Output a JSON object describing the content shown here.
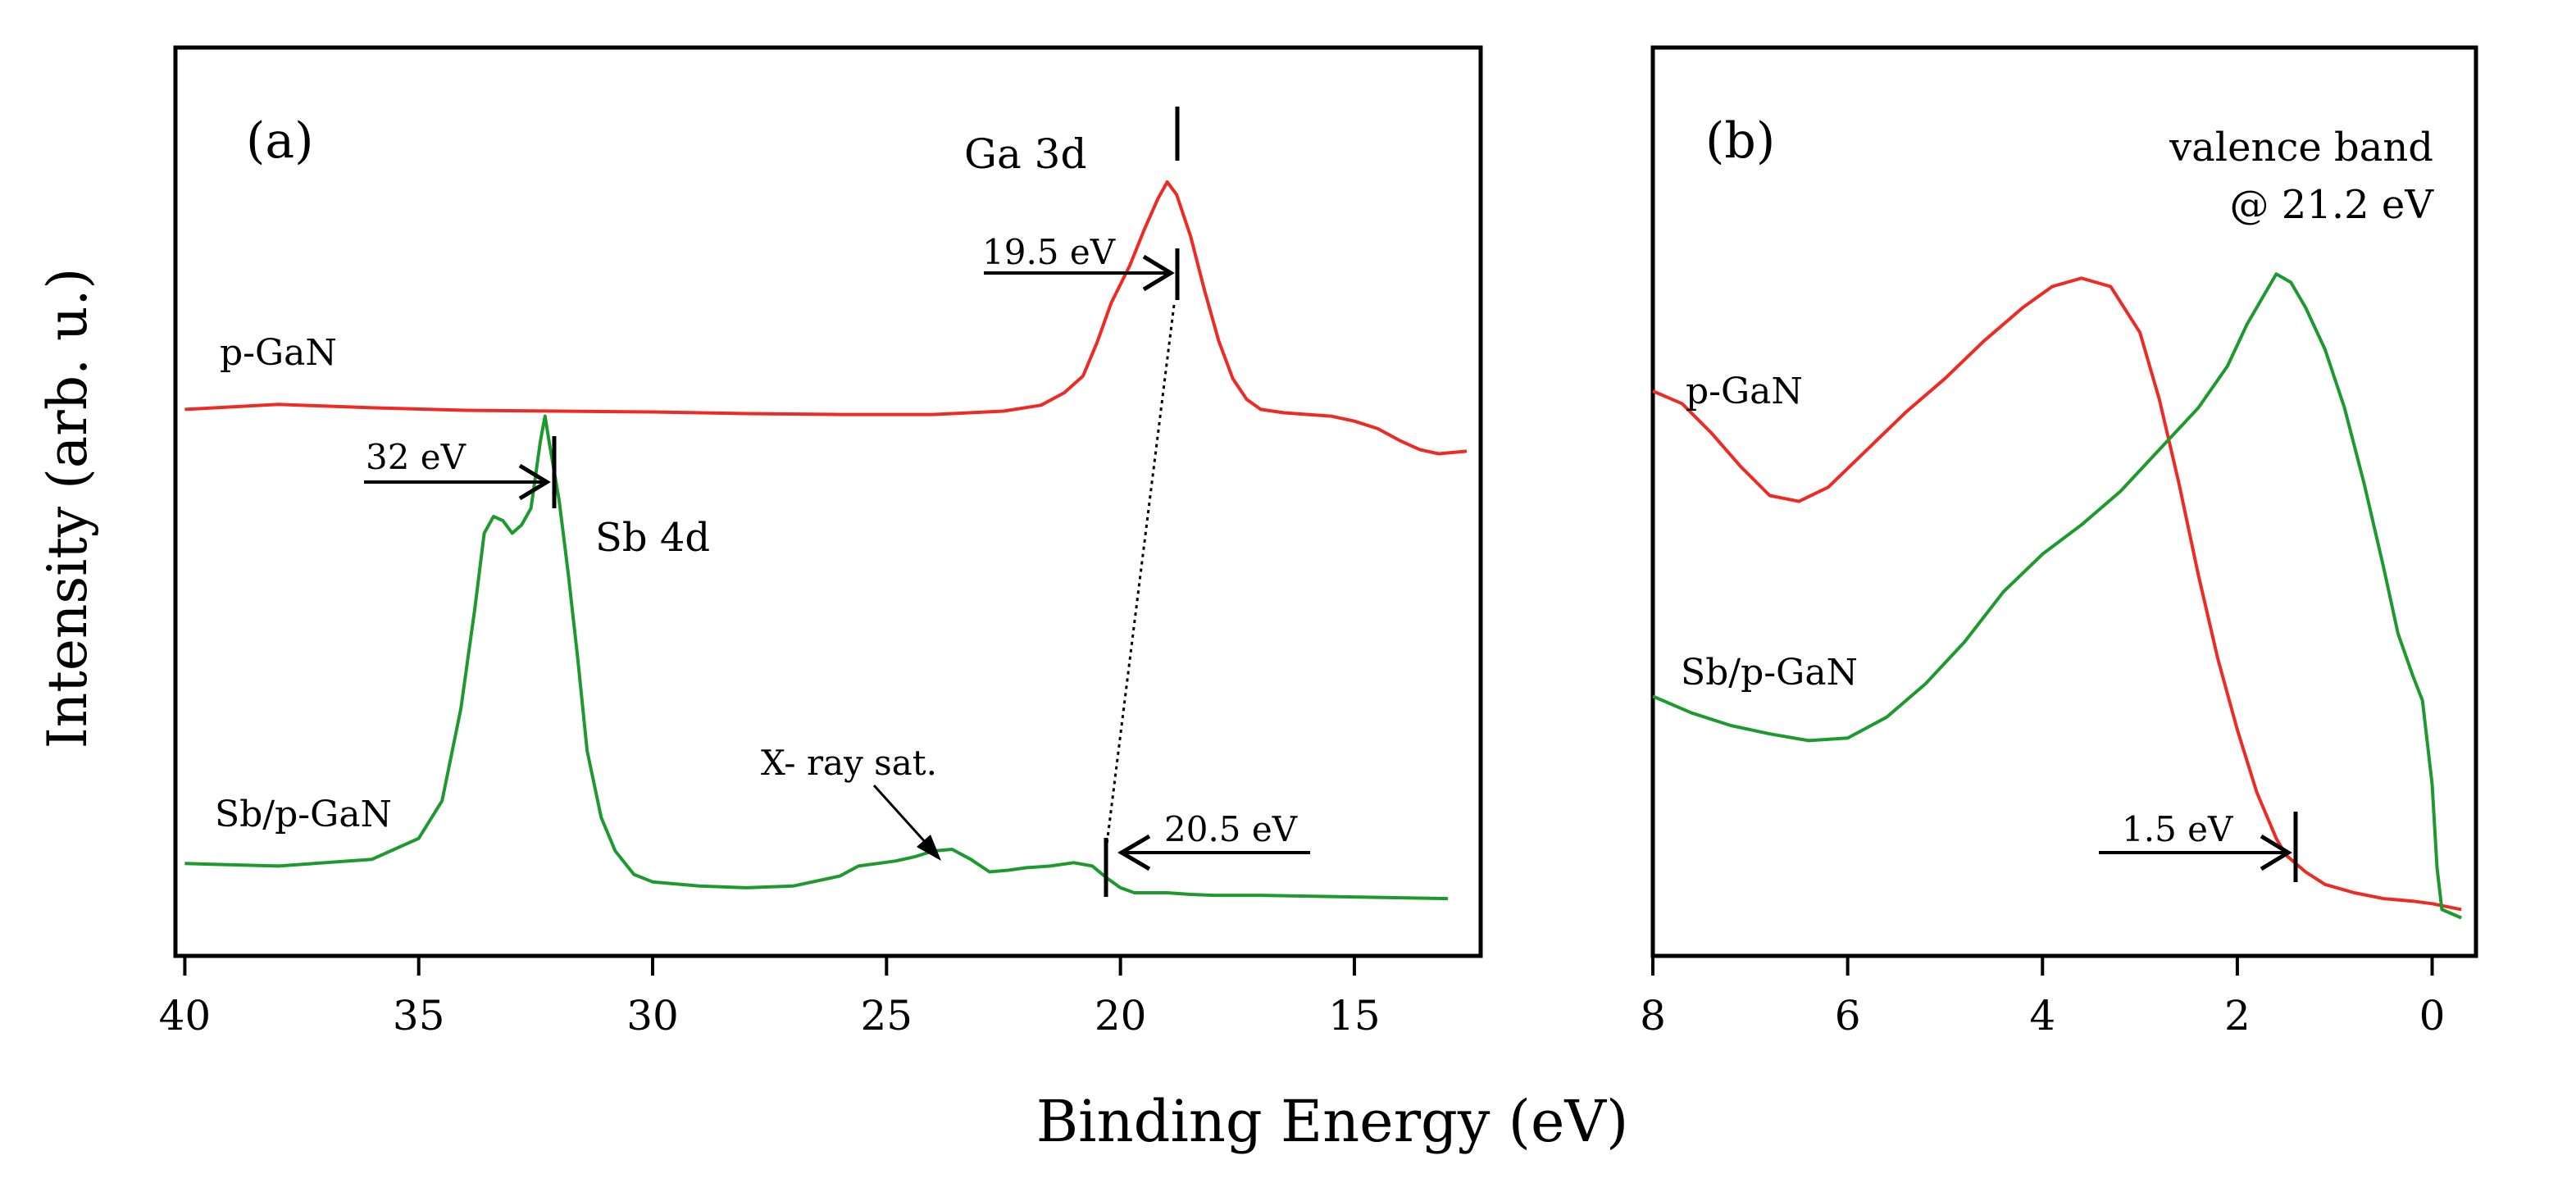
{
  "figure": {
    "ylabel": "Intensity (arb. u.)",
    "xlabel": "Binding Energy (eV)"
  },
  "chart_data": [
    {
      "type": "line",
      "panel_label": "(a)",
      "xlim": [
        40.2,
        12.3
      ],
      "ylim": [
        0,
        1
      ],
      "xticks": [
        40,
        35,
        30,
        25,
        20,
        15
      ],
      "xtick_labels": [
        "40",
        "35",
        "30",
        "25",
        "20",
        "15"
      ],
      "yticks": [],
      "grid": false,
      "series": [
        {
          "name": "p-GaN",
          "color": "#ee2a24",
          "x": [
            40.0,
            38.0,
            36.0,
            34.0,
            32.0,
            30.0,
            28.0,
            26.0,
            24.0,
            22.5,
            21.7,
            21.2,
            20.8,
            20.5,
            20.2,
            19.8,
            19.5,
            19.2,
            19.0,
            18.8,
            18.5,
            18.2,
            17.9,
            17.6,
            17.3,
            17.0,
            16.5,
            16.0,
            15.5,
            15.0,
            14.5,
            14.0,
            13.6,
            13.2,
            12.6
          ],
          "y": [
            0.628,
            0.634,
            0.63,
            0.627,
            0.626,
            0.625,
            0.623,
            0.622,
            0.622,
            0.626,
            0.633,
            0.648,
            0.668,
            0.708,
            0.755,
            0.8,
            0.842,
            0.88,
            0.9,
            0.885,
            0.835,
            0.77,
            0.71,
            0.665,
            0.64,
            0.628,
            0.624,
            0.622,
            0.62,
            0.614,
            0.605,
            0.59,
            0.58,
            0.575,
            0.578
          ]
        },
        {
          "name": "Sb/p-GaN",
          "color": "#1d9a2e",
          "x": [
            40.0,
            38.0,
            36.0,
            35.0,
            34.5,
            34.1,
            33.8,
            33.6,
            33.4,
            33.2,
            33.0,
            32.8,
            32.6,
            32.5,
            32.4,
            32.3,
            32.2,
            32.0,
            31.8,
            31.6,
            31.4,
            31.1,
            30.8,
            30.4,
            30.0,
            29.0,
            28.0,
            27.0,
            26.0,
            25.6,
            25.2,
            24.8,
            24.4,
            24.0,
            23.6,
            23.2,
            22.8,
            22.4,
            22.0,
            21.5,
            21.0,
            20.6,
            20.3,
            20.0,
            19.7,
            19.3,
            19.0,
            18.5,
            18.0,
            17.0,
            16.0,
            15.0,
            14.0,
            13.0
          ],
          "y": [
            0.085,
            0.082,
            0.09,
            0.115,
            0.16,
            0.27,
            0.39,
            0.48,
            0.5,
            0.495,
            0.48,
            0.49,
            0.51,
            0.55,
            0.59,
            0.62,
            0.585,
            0.52,
            0.43,
            0.33,
            0.22,
            0.14,
            0.1,
            0.072,
            0.063,
            0.058,
            0.056,
            0.058,
            0.07,
            0.082,
            0.085,
            0.088,
            0.093,
            0.1,
            0.102,
            0.09,
            0.075,
            0.077,
            0.08,
            0.082,
            0.086,
            0.082,
            0.068,
            0.056,
            0.05,
            0.05,
            0.05,
            0.048,
            0.047,
            0.047,
            0.046,
            0.045,
            0.044,
            0.043
          ]
        }
      ],
      "annotations": [
        {
          "text": "Ga 3d"
        },
        {
          "text": "19.5 eV",
          "x_value": 19.0
        },
        {
          "text": "32 eV",
          "x_value": 32.2
        },
        {
          "text": "Sb 4d"
        },
        {
          "text": "X- ray  sat.",
          "x_value": 24.1
        },
        {
          "text": "20.5 eV",
          "x_value": 20.5
        }
      ]
    },
    {
      "type": "line",
      "panel_label": "(b)",
      "xlim": [
        8.0,
        -0.45
      ],
      "ylim": [
        0,
        1
      ],
      "xticks": [
        8,
        6,
        4,
        2,
        0
      ],
      "xtick_labels": [
        "8",
        "6",
        "4",
        "2",
        "0"
      ],
      "yticks": [],
      "grid": false,
      "series": [
        {
          "name": "p-GaN",
          "color": "#ee2a24",
          "x": [
            8.0,
            7.7,
            7.4,
            7.1,
            6.8,
            6.5,
            6.2,
            5.8,
            5.4,
            5.0,
            4.6,
            4.2,
            3.9,
            3.6,
            3.3,
            3.0,
            2.8,
            2.6,
            2.4,
            2.2,
            2.0,
            1.8,
            1.6,
            1.5,
            1.3,
            1.1,
            0.8,
            0.5,
            0.2,
            0.0,
            -0.3
          ],
          "y": [
            0.65,
            0.635,
            0.6,
            0.56,
            0.525,
            0.518,
            0.535,
            0.58,
            0.625,
            0.665,
            0.71,
            0.75,
            0.775,
            0.785,
            0.775,
            0.72,
            0.64,
            0.54,
            0.43,
            0.33,
            0.245,
            0.17,
            0.115,
            0.095,
            0.075,
            0.06,
            0.05,
            0.043,
            0.04,
            0.037,
            0.03
          ]
        },
        {
          "name": "Sb/p-GaN",
          "color": "#1d9a2e",
          "x": [
            8.0,
            7.6,
            7.2,
            6.8,
            6.4,
            6.0,
            5.6,
            5.2,
            4.8,
            4.4,
            4.0,
            3.6,
            3.2,
            2.8,
            2.4,
            2.1,
            1.9,
            1.7,
            1.6,
            1.45,
            1.3,
            1.1,
            0.9,
            0.7,
            0.5,
            0.35,
            0.2,
            0.1,
            0.0,
            -0.05,
            -0.1,
            -0.3
          ],
          "y": [
            0.285,
            0.265,
            0.25,
            0.24,
            0.232,
            0.235,
            0.26,
            0.3,
            0.35,
            0.41,
            0.455,
            0.49,
            0.53,
            0.58,
            0.63,
            0.68,
            0.73,
            0.77,
            0.79,
            0.78,
            0.75,
            0.7,
            0.63,
            0.54,
            0.44,
            0.36,
            0.31,
            0.28,
            0.18,
            0.08,
            0.03,
            0.02
          ]
        }
      ],
      "annotations": [
        {
          "text": "valence band"
        },
        {
          "text": "@ 21.2 eV"
        },
        {
          "text": "1.5 eV",
          "x_value": 1.5
        }
      ]
    }
  ]
}
